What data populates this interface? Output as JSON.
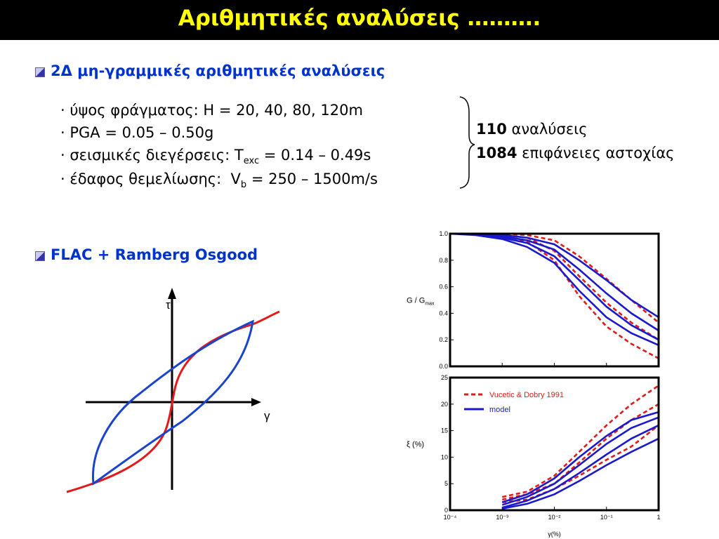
{
  "header": {
    "title": "Αριθμητικές αναλύσεις ………."
  },
  "section1": {
    "heading": "2Δ μη-γραμμικές αριθμητικές αναλύσεις",
    "items": [
      [
        "ύψος φράγματος: H = 20, 40, 80, 120m"
      ],
      [
        "PGA = 0.05 – 0.50g"
      ],
      [
        "σεισμικές διεγέρσεις: T",
        "exc",
        " = 0.14 – 0.49s"
      ],
      [
        "έδαφος θεμελίωσης:  V",
        "b",
        " = 250 – 1500m/s"
      ]
    ],
    "results": [
      [
        "110",
        " αναλύσεις"
      ],
      [
        "1084",
        " επιφάνειες αστοχίας"
      ]
    ]
  },
  "section2": {
    "heading": "FLAC + Ramberg Osgood",
    "axis_tau": "τ",
    "axis_gamma": "γ"
  },
  "chart_data": [
    {
      "type": "line",
      "y_label": [
        "G / G",
        "max"
      ],
      "log_x": true,
      "x": [
        0.0001,
        0.0003,
        0.001,
        0.003,
        0.01,
        0.03,
        0.1,
        0.3,
        1
      ],
      "xlim": [
        0.0001,
        1
      ],
      "xticks": [
        0.001,
        0.01,
        0.1
      ],
      "ylim": [
        0,
        1
      ],
      "yticks": [
        {
          "value": 0,
          "label": "0.0"
        },
        0.2,
        0.4,
        0.6,
        0.8,
        {
          "value": 1,
          "label": "1.0"
        }
      ],
      "series": [
        {
          "color": "#e21a1a",
          "dashed": true,
          "values": [
            1,
            1,
            1,
            0.99,
            0.95,
            0.83,
            0.66,
            0.5,
            0.33
          ]
        },
        {
          "color": "#e21a1a",
          "dashed": true,
          "values": [
            1,
            1,
            0.99,
            0.97,
            0.87,
            0.68,
            0.48,
            0.33,
            0.2
          ]
        },
        {
          "color": "#e21a1a",
          "dashed": true,
          "values": [
            1,
            1,
            0.99,
            0.94,
            0.8,
            0.53,
            0.3,
            0.17,
            0.06
          ]
        },
        {
          "color": "#1a1acc",
          "dashed": false,
          "values": [
            1,
            1,
            0.99,
            0.97,
            0.92,
            0.8,
            0.65,
            0.5,
            0.37
          ]
        },
        {
          "color": "#1a1acc",
          "dashed": false,
          "values": [
            1,
            1,
            0.98,
            0.95,
            0.88,
            0.73,
            0.55,
            0.4,
            0.27
          ]
        },
        {
          "color": "#1a1acc",
          "dashed": false,
          "values": [
            1,
            1,
            0.97,
            0.93,
            0.83,
            0.65,
            0.45,
            0.31,
            0.2
          ]
        },
        {
          "color": "#1a1acc",
          "dashed": false,
          "values": [
            1,
            0.99,
            0.96,
            0.9,
            0.78,
            0.57,
            0.37,
            0.25,
            0.16
          ]
        }
      ]
    },
    {
      "type": "line",
      "y_label": [
        "ξ (%)"
      ],
      "x_label": "γ(%)",
      "log_x": true,
      "x": [
        0.001,
        0.003,
        0.01,
        0.03,
        0.1,
        0.3,
        1
      ],
      "xlim": [
        0.0001,
        1
      ],
      "xticks": [
        {
          "value": 0.0001,
          "label": "10⁻⁴"
        },
        {
          "value": 0.001,
          "label": "10⁻³"
        },
        {
          "value": 0.01,
          "label": "10⁻²"
        },
        {
          "value": 0.1,
          "label": "10⁻¹"
        },
        1
      ],
      "ylim": [
        0,
        25
      ],
      "yticks": [
        0,
        5,
        10,
        15,
        20,
        25
      ],
      "legend": [
        {
          "name": "Vucetic & Dobry 1991",
          "color": "#e21a1a",
          "dashed": true
        },
        {
          "name": "model",
          "color": "#1a1acc",
          "dashed": false
        }
      ],
      "series": [
        {
          "color": "#e21a1a",
          "dashed": true,
          "values": [
            2.5,
            3.5,
            6.5,
            11,
            16,
            20,
            23.5
          ]
        },
        {
          "color": "#e21a1a",
          "dashed": true,
          "values": [
            2,
            3,
            5,
            9,
            13.5,
            17,
            20
          ]
        },
        {
          "color": "#e21a1a",
          "dashed": true,
          "values": [
            1.5,
            2,
            4,
            6.5,
            9.5,
            12,
            16
          ]
        },
        {
          "color": "#1a1acc",
          "dashed": false,
          "values": [
            1.5,
            3,
            6,
            10,
            14,
            17,
            18.5
          ]
        },
        {
          "color": "#1a1acc",
          "dashed": false,
          "values": [
            1,
            2.5,
            5,
            8.5,
            12.5,
            15.5,
            17.5
          ]
        },
        {
          "color": "#1a1acc",
          "dashed": false,
          "values": [
            0.5,
            1.8,
            4,
            7,
            10.5,
            13.5,
            16
          ]
        },
        {
          "color": "#1a1acc",
          "dashed": false,
          "values": [
            0.3,
            1.2,
            3,
            5.5,
            8.5,
            11,
            13.5
          ]
        }
      ]
    }
  ]
}
